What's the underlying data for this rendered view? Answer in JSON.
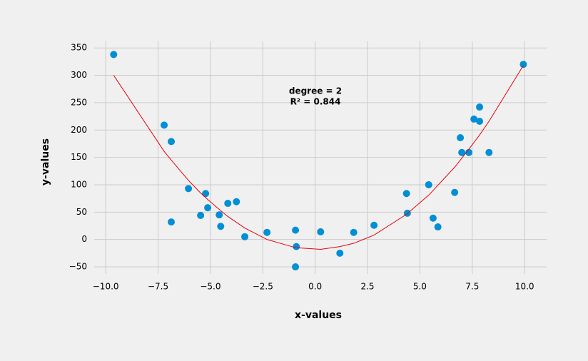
{
  "chart_data": {
    "type": "scatter",
    "xlabel": "x-values",
    "ylabel": "y-values",
    "annotation": [
      "degree = 2",
      "R² = 0.844"
    ],
    "xlim": [
      -10.55,
      11.05
    ],
    "ylim": [
      -63,
      362
    ],
    "xticks": [
      {
        "value": -10,
        "label": "−10.0"
      },
      {
        "value": -7.5,
        "label": "−7.5"
      },
      {
        "value": -5,
        "label": "−5.0"
      },
      {
        "value": -2.5,
        "label": "−2.5"
      },
      {
        "value": 0,
        "label": "0.0"
      },
      2.5,
      {
        "value": 5,
        "label": "5.0"
      },
      7.5,
      {
        "value": 10,
        "label": "10.0"
      }
    ],
    "yticks": [
      {
        "value": -50,
        "label": "−50"
      },
      0,
      50,
      100,
      150,
      200,
      250,
      300,
      350
    ],
    "grid": true,
    "series": [
      {
        "type": "scatter",
        "color": "#008fd5",
        "x": [
          -9.62,
          -7.21,
          -6.87,
          -6.87,
          -6.05,
          -5.47,
          -5.23,
          -5.13,
          -4.58,
          -4.51,
          -4.17,
          -3.76,
          -3.36,
          -2.3,
          -0.94,
          -0.9,
          -0.94,
          0.26,
          1.18,
          1.84,
          2.81,
          4.36,
          4.4,
          5.42,
          5.63,
          5.86,
          6.66,
          6.93,
          7.0,
          7.34,
          7.58,
          7.85,
          7.85,
          8.3,
          9.94
        ],
        "values": [
          338,
          209,
          179,
          32,
          93,
          44,
          84,
          58,
          45,
          24,
          66,
          69,
          5,
          13,
          17,
          -13,
          -50,
          14,
          -25,
          13,
          26,
          84,
          48,
          100,
          39,
          23,
          86,
          186,
          159,
          159,
          220,
          242,
          216,
          159,
          320
        ]
      },
      {
        "type": "line",
        "color": "#e8000b",
        "x": [
          -9.62,
          -7.21,
          -6.87,
          -6.05,
          -5.47,
          -5.13,
          -4.58,
          -4.17,
          -3.36,
          -2.3,
          -0.94,
          0.26,
          1.18,
          1.84,
          2.81,
          4.36,
          5.42,
          6.66,
          7.34,
          7.85,
          8.3,
          9.94
        ],
        "values": [
          300,
          161,
          145,
          108,
          85,
          73,
          55,
          42,
          21,
          0,
          -15,
          -18,
          -13,
          -7,
          8,
          46,
          81,
          132,
          165,
          191,
          216,
          318
        ]
      }
    ]
  }
}
